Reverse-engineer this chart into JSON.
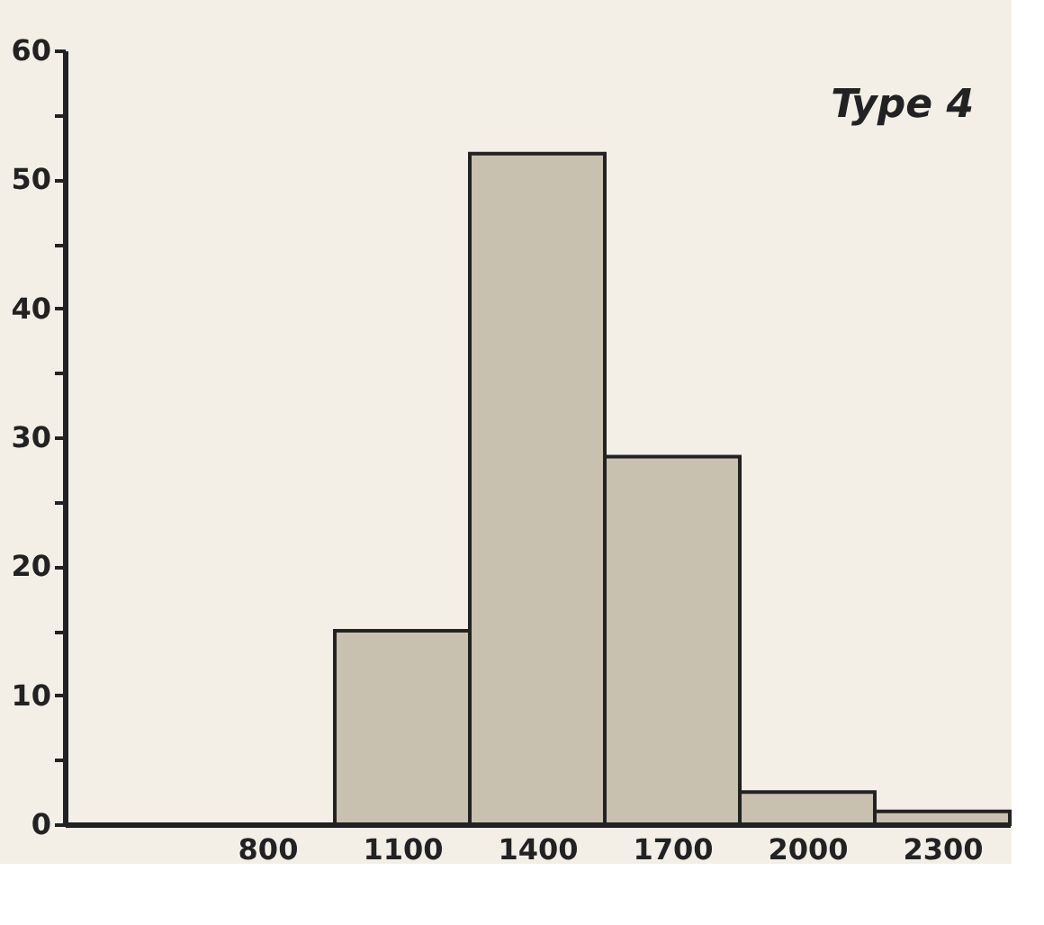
{
  "chart_data": {
    "type": "histogram",
    "title": "Type 4",
    "bins": [
      950,
      1250,
      1550,
      1850,
      2150,
      2450
    ],
    "values": [
      15,
      52,
      28.5,
      2.5,
      1
    ],
    "color": "#c9c1b0",
    "xlim": [
      350,
      2450
    ],
    "xticks": [
      800,
      1100,
      1400,
      1700,
      2000,
      2300
    ],
    "ylim": [
      0,
      60
    ],
    "yticks": [
      0,
      {
        "value": 5,
        "label": null
      },
      10,
      {
        "value": 15,
        "label": null
      },
      20,
      {
        "value": 25,
        "label": null
      },
      30,
      {
        "value": 35,
        "label": null
      },
      40,
      {
        "value": 45,
        "label": null
      },
      50,
      {
        "value": 55,
        "label": null
      },
      60
    ],
    "grid": false
  }
}
